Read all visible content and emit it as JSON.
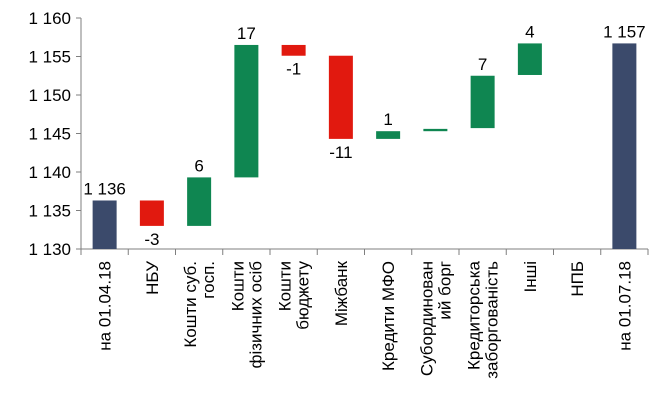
{
  "chart_data": {
    "type": "bar",
    "subtype": "waterfall",
    "title": "",
    "xlabel": "",
    "ylabel": "",
    "ylim": [
      1130,
      1160
    ],
    "yticks": [
      1130,
      1135,
      1140,
      1145,
      1150,
      1155,
      1160
    ],
    "ytick_labels": [
      "1 130",
      "1 135",
      "1 140",
      "1 145",
      "1 150",
      "1 155",
      "1 160"
    ],
    "grid": false,
    "legend": "none",
    "colors": {
      "total": "#3b4a6b",
      "increase": "#0f8651",
      "decrease": "#e1190f"
    },
    "categories": [
      [
        "на 01.04.18"
      ],
      [
        "НБУ"
      ],
      [
        "Кошти суб.",
        "госп."
      ],
      [
        "Кошти",
        "фізичних осіб"
      ],
      [
        "Кошти",
        "бюджету"
      ],
      [
        "Міжбанк"
      ],
      [
        "Кредити МФО"
      ],
      [
        "Субординован",
        "ий борг"
      ],
      [
        "Кредиторська",
        "заборгованість"
      ],
      [
        "Інші"
      ],
      [
        "НПБ"
      ],
      [
        "на 01.07.18"
      ]
    ],
    "bars": [
      {
        "kind": "total",
        "start": 1130,
        "end": 1136.3,
        "label": "1 136"
      },
      {
        "kind": "decrease",
        "start": 1136.3,
        "end": 1133.0,
        "label": "-3"
      },
      {
        "kind": "increase",
        "start": 1133.0,
        "end": 1139.3,
        "label": "6"
      },
      {
        "kind": "increase",
        "start": 1139.3,
        "end": 1156.5,
        "label": "17"
      },
      {
        "kind": "decrease",
        "start": 1156.5,
        "end": 1155.1,
        "label": "-1"
      },
      {
        "kind": "decrease",
        "start": 1155.1,
        "end": 1144.3,
        "label": "-11"
      },
      {
        "kind": "increase",
        "start": 1144.3,
        "end": 1145.3,
        "label": "1"
      },
      {
        "kind": "increase",
        "start": 1145.3,
        "end": 1145.6,
        "label": ""
      },
      {
        "kind": "increase",
        "start": 1145.7,
        "end": 1152.5,
        "label": "7"
      },
      {
        "kind": "increase",
        "start": 1152.6,
        "end": 1156.7,
        "label": "4"
      },
      {
        "kind": "increase",
        "start": 1156.7,
        "end": 1156.7,
        "label": ""
      },
      {
        "kind": "total",
        "start": 1130,
        "end": 1156.7,
        "label": "1 157"
      }
    ]
  }
}
